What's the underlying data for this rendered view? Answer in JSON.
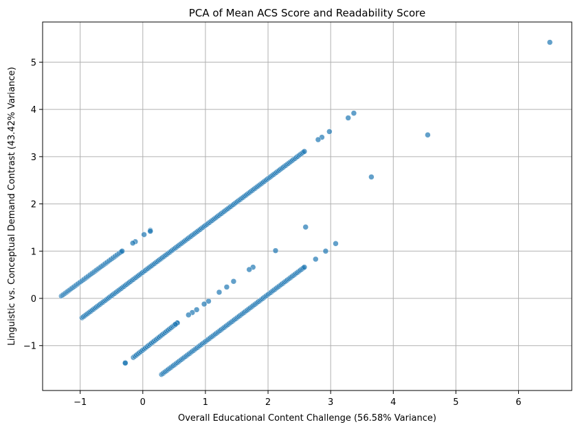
{
  "chart_data": {
    "type": "scatter",
    "title": "PCA of Mean ACS Score and Readability Score",
    "xlabel": "Overall Educational Content Challenge (56.58% Variance)",
    "ylabel": "Linguistic vs. Conceptual Demand Contrast (43.42% Variance)",
    "xlim": [
      -1.6,
      6.85
    ],
    "ylim": [
      -1.95,
      5.85
    ],
    "xticks": [
      -1,
      0,
      1,
      2,
      3,
      4,
      5,
      6
    ],
    "yticks": [
      -1,
      0,
      1,
      2,
      3,
      4,
      5
    ],
    "xtick_labels": [
      "−1",
      "0",
      "1",
      "2",
      "3",
      "4",
      "5",
      "6"
    ],
    "ytick_labels": [
      "−1",
      "0",
      "1",
      "2",
      "3",
      "4",
      "5"
    ],
    "grid": true,
    "color": "#1f77b4",
    "bands": [
      {
        "x_start": -1.3,
        "y_start": 0.05,
        "x_end": -0.33,
        "y_end": 1.0,
        "count": 60
      },
      {
        "x_start": -0.97,
        "y_start": -0.41,
        "x_end": 2.58,
        "y_end": 3.11,
        "count": 170
      },
      {
        "x_start": -0.15,
        "y_start": -1.25,
        "x_end": 0.55,
        "y_end": -0.52,
        "count": 30
      },
      {
        "x_start": 0.3,
        "y_start": -1.61,
        "x_end": 2.58,
        "y_end": 0.66,
        "count": 120
      }
    ],
    "points": [
      {
        "x": 6.5,
        "y": 5.42
      },
      {
        "x": 4.55,
        "y": 3.46
      },
      {
        "x": 3.65,
        "y": 2.57
      },
      {
        "x": 3.37,
        "y": 3.92
      },
      {
        "x": 3.28,
        "y": 3.82
      },
      {
        "x": 2.98,
        "y": 3.53
      },
      {
        "x": 2.86,
        "y": 3.41
      },
      {
        "x": 2.8,
        "y": 3.36
      },
      {
        "x": 2.6,
        "y": 1.51
      },
      {
        "x": 3.08,
        "y": 1.16
      },
      {
        "x": 2.92,
        "y": 1.0
      },
      {
        "x": 2.76,
        "y": 0.83
      },
      {
        "x": 2.12,
        "y": 1.01
      },
      {
        "x": 1.76,
        "y": 0.66
      },
      {
        "x": 1.7,
        "y": 0.61
      },
      {
        "x": 1.45,
        "y": 0.36
      },
      {
        "x": 1.34,
        "y": 0.24
      },
      {
        "x": 1.22,
        "y": 0.13
      },
      {
        "x": 1.05,
        "y": -0.06
      },
      {
        "x": 0.98,
        "y": -0.12
      },
      {
        "x": 0.86,
        "y": -0.24
      },
      {
        "x": 0.79,
        "y": -0.3
      },
      {
        "x": 0.73,
        "y": -0.35
      },
      {
        "x": 0.12,
        "y": 1.44
      },
      {
        "x": 0.12,
        "y": 1.42
      },
      {
        "x": 0.02,
        "y": 1.35
      },
      {
        "x": -0.12,
        "y": 1.2
      },
      {
        "x": -0.16,
        "y": 1.17
      },
      {
        "x": -0.28,
        "y": -1.36
      },
      {
        "x": -0.28,
        "y": -1.37
      },
      {
        "x": 0.55,
        "y": -0.52
      },
      {
        "x": 0.52,
        "y": -0.55
      }
    ]
  }
}
